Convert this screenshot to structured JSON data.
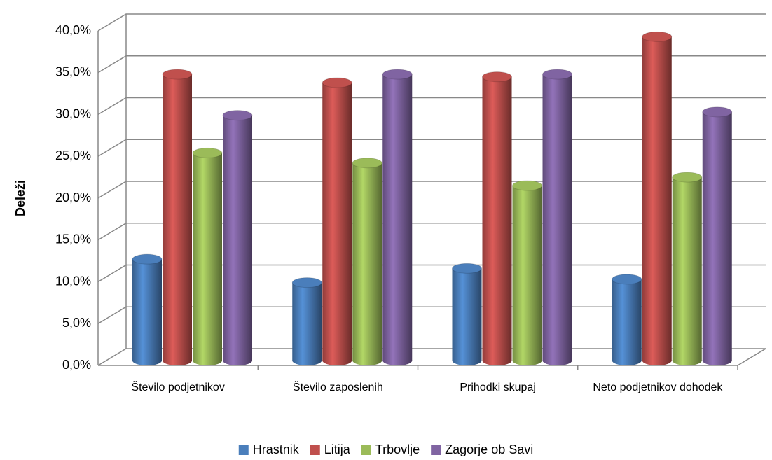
{
  "chart_data": {
    "type": "cylinder",
    "y_label": "Deleži",
    "categories": [
      "Število podjetnikov",
      "Število zaposlenih",
      "Prihodki skupaj",
      "Neto podjetnikov dohodek"
    ],
    "series": [
      {
        "name": "Hrastnik",
        "color": "#4a7ebb",
        "values": [
          11.7,
          8.9,
          10.6,
          9.3
        ]
      },
      {
        "name": "Litija",
        "color": "#c0504d",
        "values": [
          33.8,
          32.8,
          33.5,
          38.3
        ]
      },
      {
        "name": "Trbovlje",
        "color": "#9bbb59",
        "values": [
          24.4,
          23.2,
          20.5,
          21.5
        ]
      },
      {
        "name": "Zagorje ob Savi",
        "color": "#8064a2",
        "values": [
          28.9,
          33.8,
          33.8,
          29.3
        ]
      }
    ],
    "ylim": [
      0,
      40
    ],
    "yticks": [
      {
        "value": 0,
        "label": "0,0%"
      },
      {
        "value": 5,
        "label": "5,0%"
      },
      {
        "value": 10,
        "label": "10,0%"
      },
      {
        "value": 15,
        "label": "15,0%"
      },
      {
        "value": 20,
        "label": "20,0%"
      },
      {
        "value": 25,
        "label": "25,0%"
      },
      {
        "value": 30,
        "label": "30,0%"
      },
      {
        "value": 35,
        "label": "35,0%"
      },
      {
        "value": 40,
        "label": "40,0%"
      }
    ],
    "grid": true,
    "legend": "bottom"
  }
}
